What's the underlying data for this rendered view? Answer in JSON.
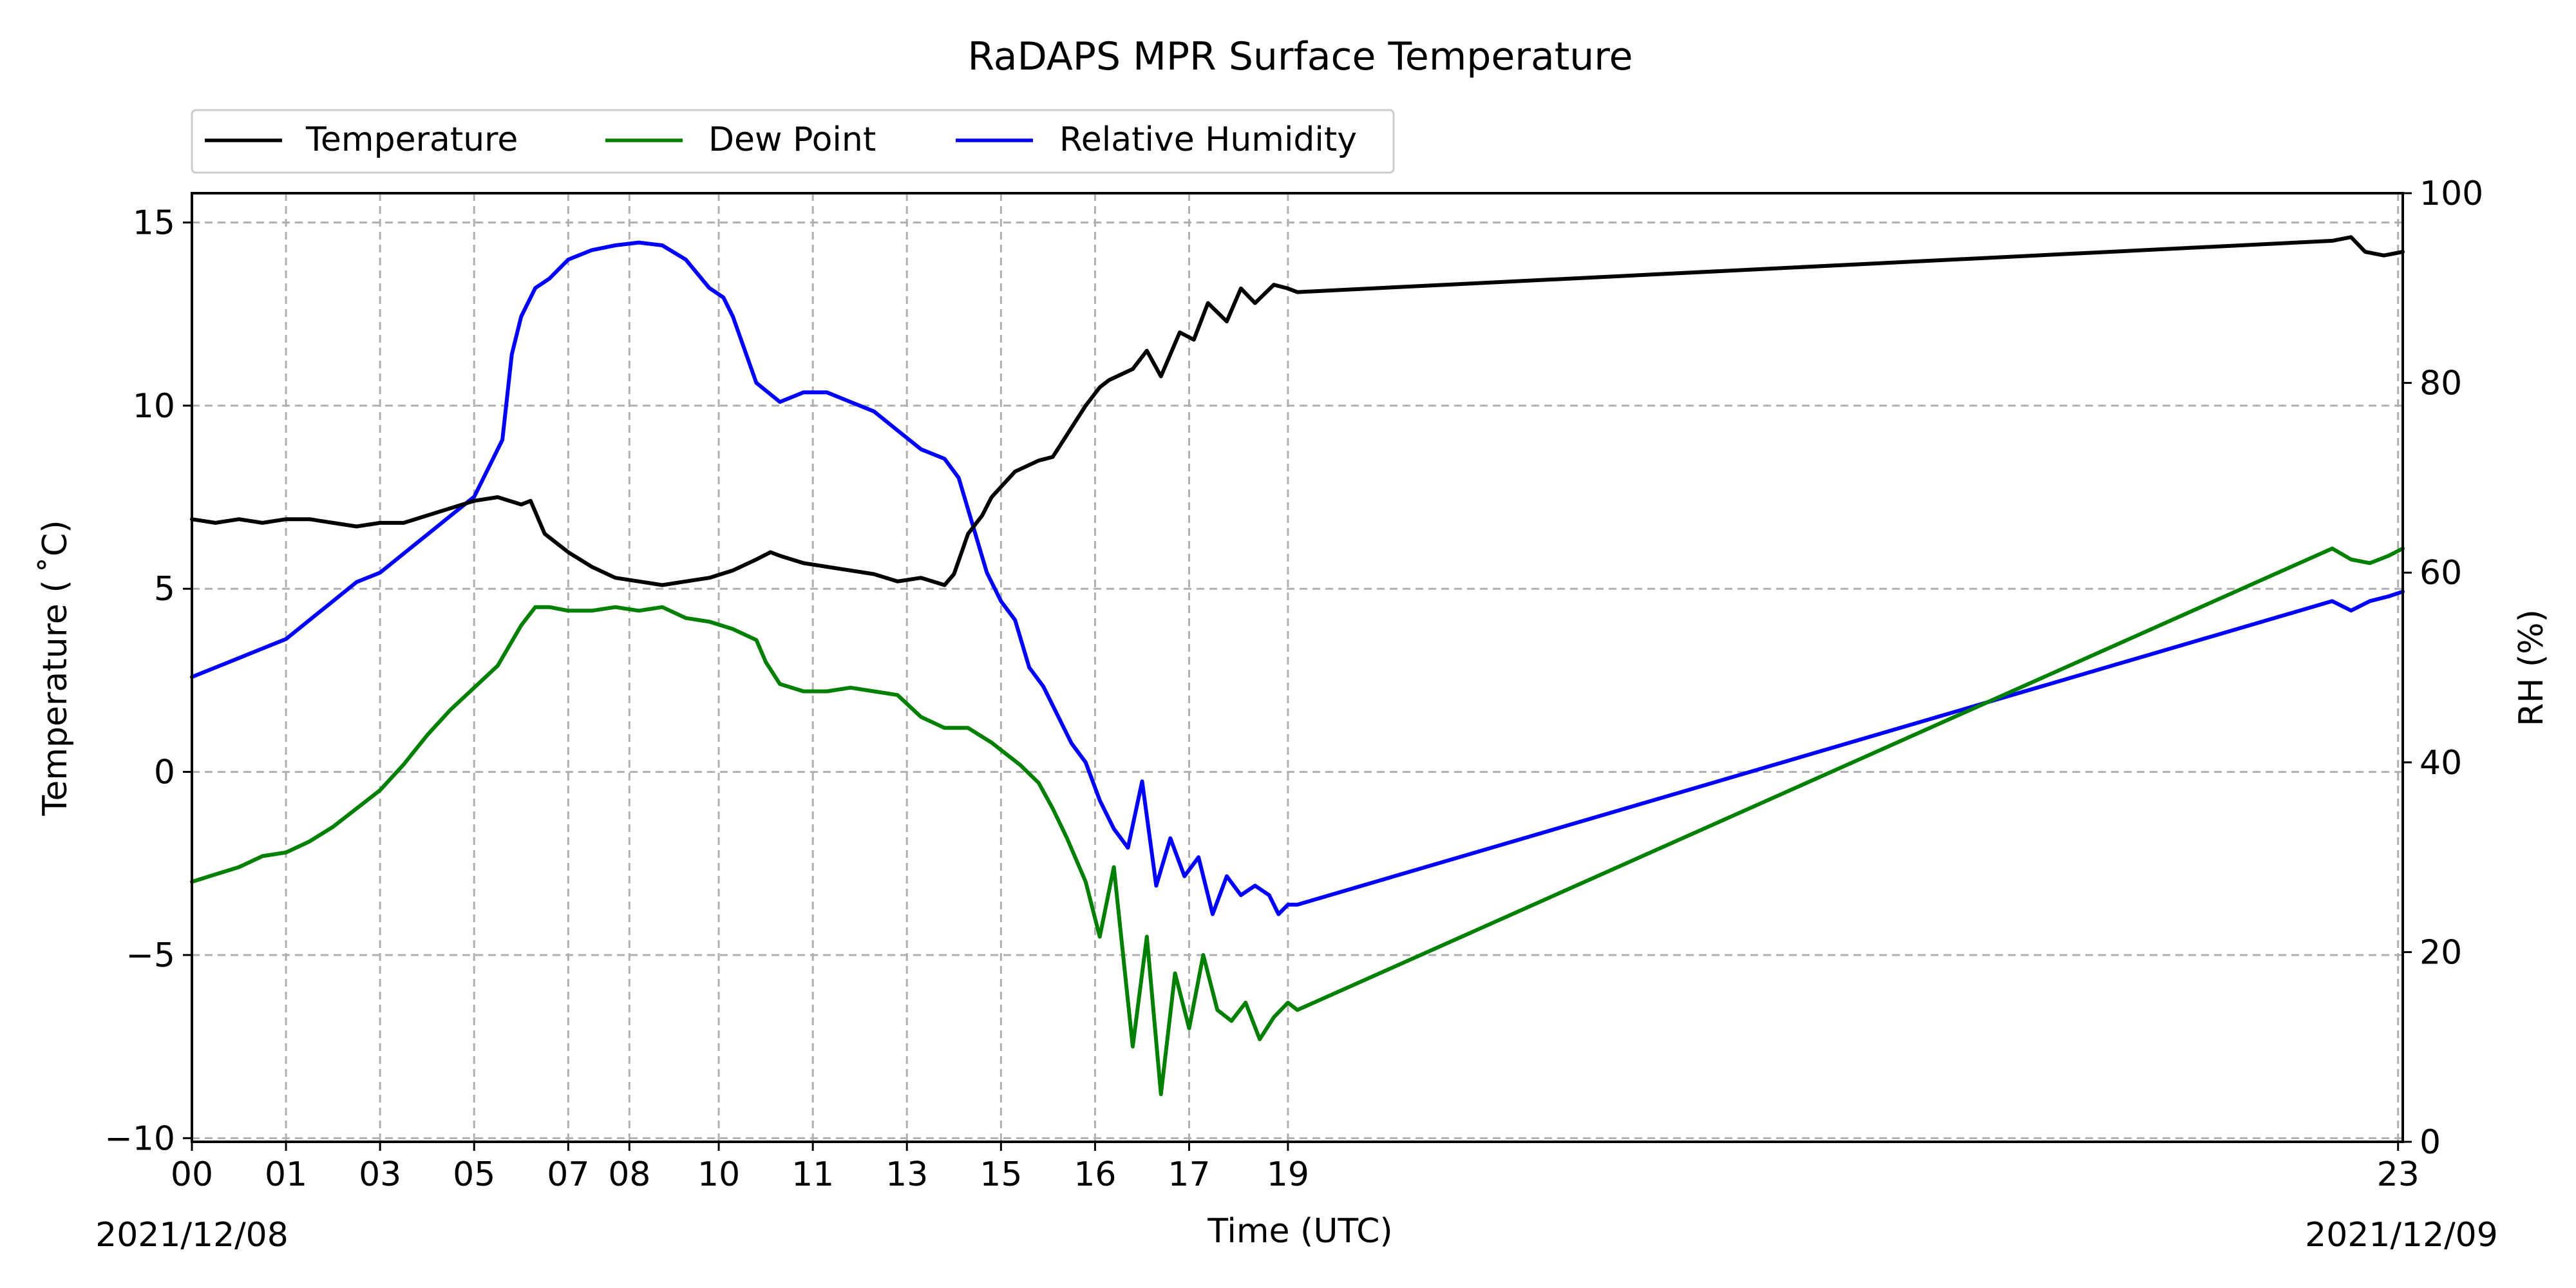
{
  "chart_data": {
    "type": "line",
    "title": "RaDAPS MPR Surface Temperature",
    "xlabel": "Time (UTC)",
    "ylabel_left": "Temperature ($^\\circ$C)",
    "ylabel_left_display": "Temperature ( ˚C)",
    "ylabel_right": "RH (%)",
    "x_units": "hours UTC from 2021/12/08 00:00",
    "xlim": [
      0,
      47
    ],
    "ylim_left": [
      -10.1,
      15.8
    ],
    "ylim_right": [
      0,
      100
    ],
    "grid": true,
    "legend_position": "top-left, above plot",
    "x_ticks": [
      {
        "value": 0,
        "label": "00"
      },
      {
        "value": 2,
        "label": "01"
      },
      {
        "value": 4,
        "label": "03"
      },
      {
        "value": 6,
        "label": "05"
      },
      {
        "value": 8,
        "label": "07"
      },
      {
        "value": 9.3,
        "label": "08"
      },
      {
        "value": 11.2,
        "label": "10"
      },
      {
        "value": 13.2,
        "label": "11"
      },
      {
        "value": 15.2,
        "label": "13"
      },
      {
        "value": 17.2,
        "label": "15"
      },
      {
        "value": 19.2,
        "label": "16"
      },
      {
        "value": 21.2,
        "label": "17"
      },
      {
        "value": 23.3,
        "label": "19"
      },
      {
        "value": 46.9,
        "label": "23"
      }
    ],
    "date_labels": {
      "start": "2021/12/08",
      "end": "2021/12/09"
    },
    "y_ticks_left": [
      {
        "value": -10,
        "label": "−10"
      },
      {
        "value": -5,
        "label": "−5"
      },
      {
        "value": 0,
        "label": "0"
      },
      {
        "value": 5,
        "label": "5"
      },
      {
        "value": 10,
        "label": "10"
      },
      {
        "value": 15,
        "label": "15"
      }
    ],
    "y_ticks_right": [
      {
        "value": 0,
        "label": "0"
      },
      {
        "value": 20,
        "label": "20"
      },
      {
        "value": 40,
        "label": "40"
      },
      {
        "value": 60,
        "label": "60"
      },
      {
        "value": 80,
        "label": "80"
      },
      {
        "value": 100,
        "label": "100"
      }
    ],
    "series": [
      {
        "name": "Temperature",
        "axis": "left",
        "color": "#000000",
        "x": [
          0,
          0.5,
          1,
          1.5,
          2,
          2.5,
          3,
          3.5,
          4,
          4.5,
          5,
          5.5,
          6,
          6.5,
          7,
          7.2,
          7.5,
          8,
          8.5,
          9,
          9.5,
          10,
          10.5,
          11,
          11.5,
          12,
          12.3,
          12.5,
          13,
          13.5,
          14,
          14.5,
          15,
          15.5,
          16,
          16.2,
          16.5,
          16.8,
          17,
          17.5,
          18,
          18.3,
          18.5,
          19,
          19.3,
          19.5,
          20,
          20.3,
          20.6,
          21,
          21.3,
          21.6,
          22,
          22.3,
          22.6,
          23,
          23.3,
          23.5,
          45.5,
          45.9,
          46.2,
          46.6,
          47
        ],
        "y": [
          6.9,
          6.8,
          6.9,
          6.8,
          6.9,
          6.9,
          6.8,
          6.7,
          6.8,
          6.8,
          7.0,
          7.2,
          7.4,
          7.5,
          7.3,
          7.4,
          6.5,
          6.0,
          5.6,
          5.3,
          5.2,
          5.1,
          5.2,
          5.3,
          5.5,
          5.8,
          6.0,
          5.9,
          5.7,
          5.6,
          5.5,
          5.4,
          5.2,
          5.3,
          5.1,
          5.4,
          6.5,
          7.0,
          7.5,
          8.2,
          8.5,
          8.6,
          9.0,
          10.0,
          10.5,
          10.7,
          11.0,
          11.5,
          10.8,
          12.0,
          11.8,
          12.8,
          12.3,
          13.2,
          12.8,
          13.3,
          13.2,
          13.1,
          14.5,
          14.6,
          14.2,
          14.1,
          14.2
        ]
      },
      {
        "name": "Dew Point",
        "axis": "left",
        "color": "#008000",
        "x": [
          0,
          0.5,
          1,
          1.5,
          2,
          2.5,
          3,
          3.5,
          4,
          4.5,
          5,
          5.5,
          6,
          6.5,
          7,
          7.3,
          7.6,
          8,
          8.5,
          9,
          9.5,
          10,
          10.5,
          11,
          11.5,
          12,
          12.2,
          12.5,
          13,
          13.5,
          14,
          14.5,
          15,
          15.5,
          16,
          16.5,
          17,
          17.3,
          17.6,
          18,
          18.3,
          18.6,
          19,
          19.3,
          19.6,
          20,
          20.3,
          20.6,
          20.9,
          21.2,
          21.5,
          21.8,
          22.1,
          22.4,
          22.7,
          23,
          23.3,
          23.5,
          45.5,
          45.9,
          46.3,
          46.7,
          47
        ],
        "y": [
          -3.0,
          -2.8,
          -2.6,
          -2.3,
          -2.2,
          -1.9,
          -1.5,
          -1.0,
          -0.5,
          0.2,
          1.0,
          1.7,
          2.3,
          2.9,
          4.0,
          4.5,
          4.5,
          4.4,
          4.4,
          4.5,
          4.4,
          4.5,
          4.2,
          4.1,
          3.9,
          3.6,
          3.0,
          2.4,
          2.2,
          2.2,
          2.3,
          2.2,
          2.1,
          1.5,
          1.2,
          1.2,
          0.8,
          0.5,
          0.2,
          -0.3,
          -1.0,
          -1.8,
          -3.0,
          -4.5,
          -2.6,
          -7.5,
          -4.5,
          -8.8,
          -5.5,
          -7.0,
          -5.0,
          -6.5,
          -6.8,
          -6.3,
          -7.3,
          -6.7,
          -6.3,
          -6.5,
          6.1,
          5.8,
          5.7,
          5.9,
          6.1
        ]
      },
      {
        "name": "Relative Humidity",
        "axis": "right",
        "color": "#0000ff",
        "x": [
          0,
          0.5,
          1,
          1.5,
          2,
          2.5,
          3,
          3.5,
          4,
          4.5,
          5,
          5.5,
          6,
          6.3,
          6.6,
          6.8,
          7,
          7.3,
          7.6,
          8,
          8.5,
          9,
          9.5,
          10,
          10.5,
          11,
          11.3,
          11.5,
          12,
          12.5,
          13,
          13.5,
          14,
          14.5,
          15,
          15.5,
          16,
          16.3,
          16.6,
          16.9,
          17.2,
          17.5,
          17.8,
          18.1,
          18.4,
          18.7,
          19,
          19.3,
          19.6,
          19.9,
          20.2,
          20.5,
          20.8,
          21.1,
          21.4,
          21.7,
          22,
          22.3,
          22.6,
          22.9,
          23.1,
          23.3,
          23.5,
          45.5,
          45.9,
          46.3,
          46.7,
          47
        ],
        "y": [
          49,
          50,
          51,
          52,
          53,
          55,
          57,
          59,
          60,
          62,
          64,
          66,
          68,
          71,
          74,
          83,
          87,
          90,
          91,
          93,
          94,
          94.5,
          94.8,
          94.5,
          93,
          90,
          89,
          87,
          80,
          78,
          79,
          79,
          78,
          77,
          75,
          73,
          72,
          70,
          65,
          60,
          57,
          55,
          50,
          48,
          45,
          42,
          40,
          36,
          33,
          31,
          38,
          27,
          32,
          28,
          30,
          24,
          28,
          26,
          27,
          26,
          24,
          25,
          25,
          57,
          56,
          57,
          57.5,
          58
        ]
      }
    ]
  }
}
